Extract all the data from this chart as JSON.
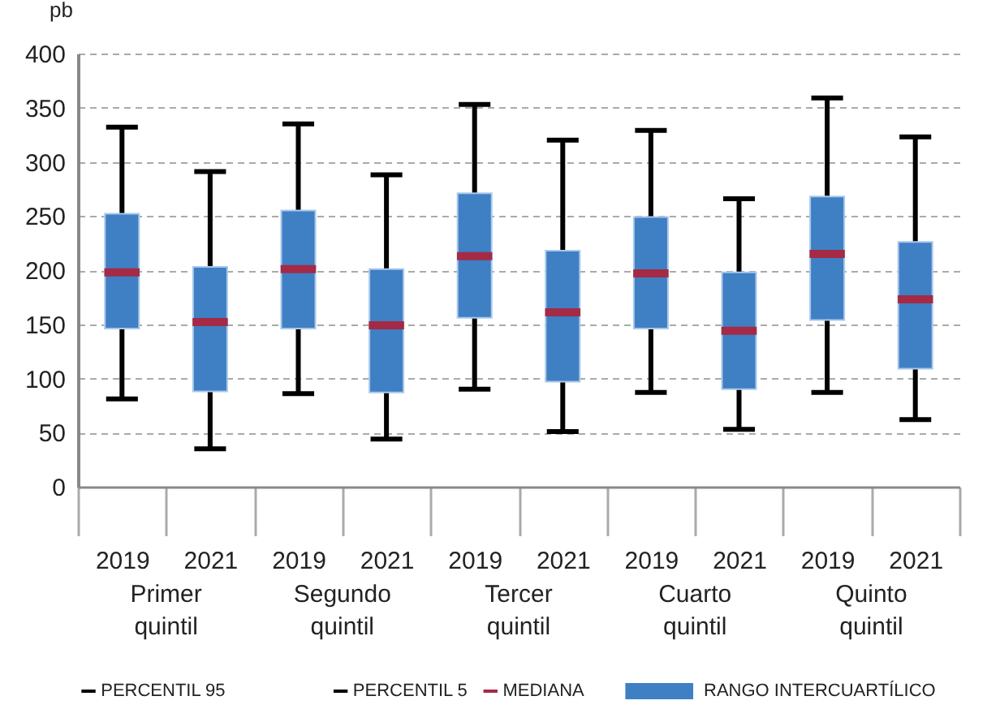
{
  "chart_data": {
    "type": "box",
    "ylabel": "pb",
    "categories": [
      "2019",
      "2021",
      "2019",
      "2021",
      "2019",
      "2021",
      "2019",
      "2021",
      "2019",
      "2021"
    ],
    "series": [
      {
        "name": "RANGO INTERCUARTÍLICO",
        "color": "#3f7fc4",
        "boxes": [
          {
            "low": 81,
            "q1": 146,
            "median": 198,
            "q3": 252,
            "high": 332
          },
          {
            "low": 35,
            "q1": 88,
            "median": 152,
            "q3": 203,
            "high": 291
          },
          {
            "low": 86,
            "q1": 146,
            "median": 201,
            "q3": 255,
            "high": 335
          },
          {
            "low": 44,
            "q1": 87,
            "median": 149,
            "q3": 201,
            "high": 288
          },
          {
            "low": 90,
            "q1": 156,
            "median": 213,
            "q3": 271,
            "high": 353
          },
          {
            "low": 51,
            "q1": 97,
            "median": 161,
            "q3": 218,
            "high": 320
          },
          {
            "low": 87,
            "q1": 146,
            "median": 197,
            "q3": 249,
            "high": 329
          },
          {
            "low": 53,
            "q1": 90,
            "median": 144,
            "q3": 198,
            "high": 266
          },
          {
            "low": 87,
            "q1": 154,
            "median": 215,
            "q3": 268,
            "high": 359
          },
          {
            "low": 62,
            "q1": 109,
            "median": 173,
            "q3": 226,
            "high": 323
          }
        ]
      }
    ],
    "annotations": [
      "Primer quintil",
      "Segundo quintil",
      "Tercer quintil",
      "Cuarto quintil",
      "Quinto quintil",
      "PERCENTIL 95",
      "PERCENTIL 5",
      "MEDIANA"
    ],
    "ylim": [
      0,
      400
    ],
    "yticks": [
      0,
      50,
      100,
      150,
      200,
      250,
      300,
      350,
      400
    ],
    "grid": "y",
    "legend": "bottom"
  }
}
